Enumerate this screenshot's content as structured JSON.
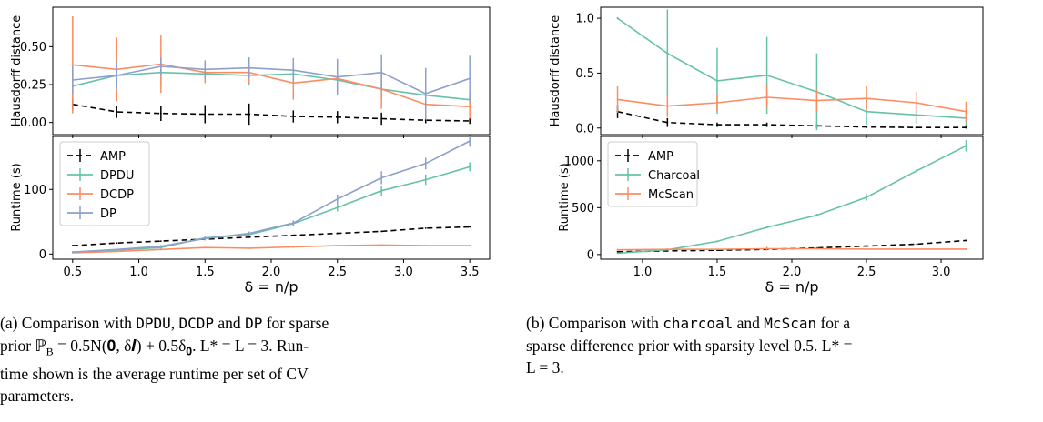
{
  "chart_data": [
    {
      "type": "line",
      "title": "",
      "xlabel": "δ = n/p",
      "ylabel": "Hausdorff distance",
      "xlim": [
        0.35,
        3.65
      ],
      "ylim": [
        -0.08,
        0.76
      ],
      "xticks": [
        "0.5",
        "1.0",
        "1.5",
        "2.0",
        "2.5",
        "3.0",
        "3.5"
      ],
      "yticks": [
        "0.00",
        "0.25",
        "0.50"
      ],
      "x": [
        0.5,
        0.833,
        1.167,
        1.5,
        1.833,
        2.167,
        2.5,
        2.833,
        3.167,
        3.5
      ],
      "series": [
        {
          "name": "AMP",
          "color": "#000000",
          "dashed": true,
          "values": [
            0.12,
            0.07,
            0.06,
            0.055,
            0.055,
            0.04,
            0.035,
            0.025,
            0.015,
            0.01
          ],
          "err": [
            0.04,
            0.04,
            0.05,
            0.06,
            0.07,
            0.04,
            0.04,
            0.04,
            0.02,
            0.02
          ]
        },
        {
          "name": "DPDU",
          "color": "#66c2a5",
          "values": [
            0.24,
            0.31,
            0.33,
            0.32,
            0.31,
            0.32,
            0.28,
            0.22,
            0.18,
            0.15
          ],
          "err": [
            0.09,
            0.09,
            0.08,
            0.06,
            0.06,
            0.07,
            0.07,
            0.06,
            0.05,
            0.05
          ]
        },
        {
          "name": "DCDP",
          "color": "#fc8d62",
          "values": [
            0.38,
            0.35,
            0.385,
            0.33,
            0.33,
            0.26,
            0.29,
            0.22,
            0.12,
            0.105
          ],
          "err": [
            0.32,
            0.21,
            0.19,
            0.07,
            0.07,
            0.11,
            0.1,
            0.13,
            0.07,
            0.08
          ]
        },
        {
          "name": "DP",
          "color": "#8da0cb",
          "values": [
            0.28,
            0.31,
            0.37,
            0.35,
            0.36,
            0.345,
            0.3,
            0.33,
            0.19,
            0.29
          ],
          "err": [
            0.09,
            0.09,
            0.06,
            0.06,
            0.07,
            0.08,
            0.12,
            0.12,
            0.17,
            0.15
          ]
        }
      ]
    },
    {
      "type": "line",
      "title": "",
      "xlabel": "δ = n/p",
      "ylabel": "Runtime (s)",
      "xlim": [
        0.35,
        3.65
      ],
      "ylim": [
        -8,
        182
      ],
      "xticks": [
        "0.5",
        "1.0",
        "1.5",
        "2.0",
        "2.5",
        "3.0",
        "3.5"
      ],
      "yticks": [
        "0",
        "100"
      ],
      "x": [
        0.5,
        0.833,
        1.167,
        1.5,
        1.833,
        2.167,
        2.5,
        2.833,
        3.167,
        3.5
      ],
      "legend": "upper-left",
      "series": [
        {
          "name": "AMP",
          "color": "#000000",
          "dashed": true,
          "values": [
            13,
            17,
            20,
            23,
            26,
            29,
            32,
            35,
            40,
            42
          ],
          "err": [
            0,
            0,
            0,
            0,
            0,
            0,
            0,
            0,
            0,
            0
          ]
        },
        {
          "name": "DPDU",
          "color": "#66c2a5",
          "values": [
            3,
            6,
            10,
            25,
            30,
            47,
            72,
            98,
            115,
            135
          ],
          "err": [
            1,
            1,
            2,
            3,
            3,
            4,
            6,
            8,
            8,
            7
          ]
        },
        {
          "name": "DCDP",
          "color": "#fc8d62",
          "values": [
            2,
            4,
            7,
            10,
            9,
            11,
            13,
            14,
            13,
            13
          ],
          "err": [
            0.5,
            0.5,
            1,
            1,
            1,
            1,
            1,
            1,
            1,
            1
          ]
        },
        {
          "name": "DP",
          "color": "#8da0cb",
          "values": [
            3,
            7,
            12,
            24,
            32,
            48,
            85,
            118,
            140,
            175
          ],
          "err": [
            1,
            1,
            2,
            3,
            3,
            4,
            7,
            10,
            9,
            9
          ]
        }
      ]
    },
    {
      "type": "line",
      "title": "",
      "xlabel": "δ = n/p",
      "ylabel": "Hausdorff distance",
      "xlim": [
        0.72,
        3.28
      ],
      "ylim": [
        -0.06,
        1.1
      ],
      "xticks": [
        "1.0",
        "1.5",
        "2.0",
        "2.5",
        "3.0"
      ],
      "yticks": [
        "0.0",
        "0.5",
        "1.0"
      ],
      "x": [
        0.833,
        1.167,
        1.5,
        1.833,
        2.167,
        2.5,
        2.833,
        3.167
      ],
      "series": [
        {
          "name": "AMP",
          "color": "#000000",
          "dashed": true,
          "values": [
            0.15,
            0.05,
            0.03,
            0.03,
            0.02,
            0.01,
            0.005,
            0.005
          ],
          "err": [
            0.06,
            0.04,
            0.02,
            0.02,
            0.02,
            0.01,
            0.01,
            0.01
          ]
        },
        {
          "name": "Charcoal",
          "color": "#66c2a5",
          "values": [
            1.0,
            0.68,
            0.43,
            0.48,
            0.33,
            0.15,
            0.12,
            0.09
          ],
          "err": [
            0.01,
            0.4,
            0.3,
            0.35,
            0.35,
            0.12,
            0.08,
            0.07
          ]
        },
        {
          "name": "McScan",
          "color": "#fc8d62",
          "values": [
            0.26,
            0.2,
            0.23,
            0.28,
            0.25,
            0.27,
            0.23,
            0.15
          ],
          "err": [
            0.12,
            0.1,
            0.08,
            0.1,
            0.1,
            0.11,
            0.1,
            0.09
          ]
        }
      ]
    },
    {
      "type": "line",
      "title": "",
      "xlabel": "δ = n/p",
      "ylabel": "Runtime (s)",
      "xlim": [
        0.72,
        3.28
      ],
      "ylim": [
        -50,
        1260
      ],
      "xticks": [
        "1.0",
        "1.5",
        "2.0",
        "2.5",
        "3.0"
      ],
      "yticks": [
        "0",
        "500",
        "1000"
      ],
      "x": [
        0.833,
        1.167,
        1.5,
        1.833,
        2.167,
        2.5,
        2.833,
        3.167
      ],
      "legend": "upper-left",
      "series": [
        {
          "name": "AMP",
          "color": "#000000",
          "dashed": true,
          "values": [
            30,
            38,
            45,
            55,
            70,
            90,
            110,
            150
          ],
          "err": [
            0,
            0,
            0,
            0,
            0,
            0,
            0,
            0
          ]
        },
        {
          "name": "Charcoal",
          "color": "#66c2a5",
          "values": [
            15,
            50,
            140,
            290,
            420,
            610,
            890,
            1160
          ],
          "err": [
            5,
            8,
            10,
            12,
            15,
            35,
            20,
            60
          ]
        },
        {
          "name": "McScan",
          "color": "#fc8d62",
          "values": [
            50,
            55,
            55,
            62,
            62,
            58,
            58,
            58
          ],
          "err": [
            10,
            10,
            8,
            20,
            10,
            8,
            8,
            8
          ]
        }
      ]
    }
  ],
  "captions": {
    "a_line1_pre": "(a) Comparison with ",
    "a_dpdu": "DPDU",
    "a_sep1": ", ",
    "a_dcdp": "DCDP",
    "a_and": " and ",
    "a_dp": "DP",
    "a_line1_post": " for sparse",
    "a_line2": "prior ℙ",
    "a_line2_sub": "B̄",
    "a_line2_rest": " = 0.5N(𝟎, δ𝑰) + 0.5δ",
    "a_line2_sub2": "𝟎",
    "a_line2_end": ".  L* = L = 3.  Run-",
    "a_line3": "time shown is the average runtime per set of CV",
    "a_line4": "parameters.",
    "b_line1_pre": "(b) Comparison with ",
    "b_charcoal": "charcoal",
    "b_and": " and ",
    "b_mcscan": "McScan",
    "b_line1_post": " for a",
    "b_line2": "sparse difference prior with sparsity level 0.5.  L* =",
    "b_line3": "L = 3."
  }
}
